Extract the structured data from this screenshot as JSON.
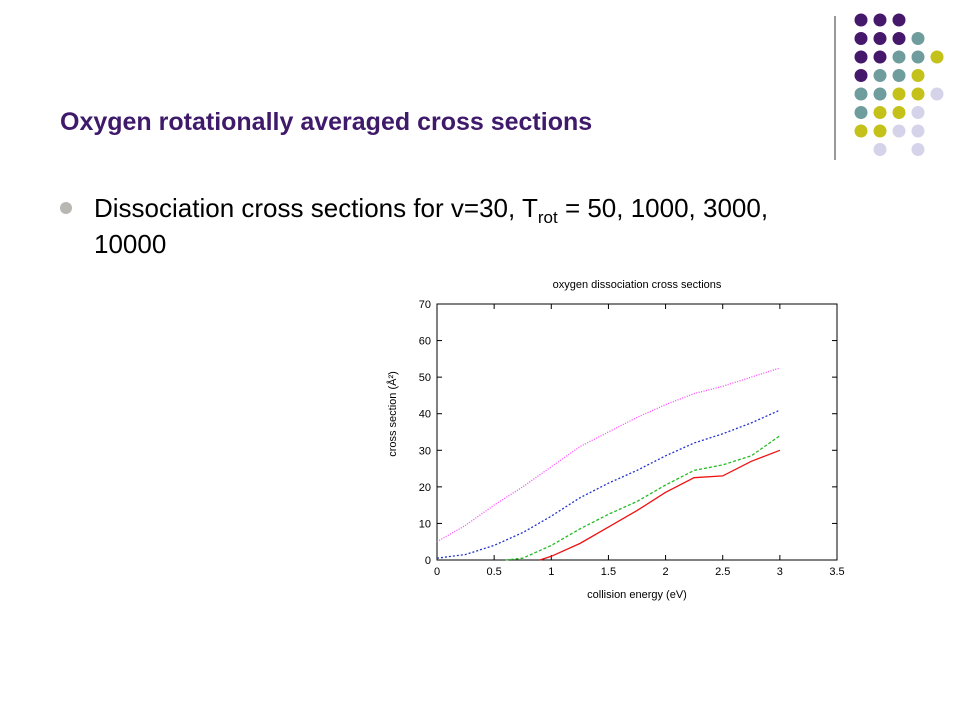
{
  "slide": {
    "title": "Oxygen rotationally averaged cross sections",
    "bullet": {
      "prefix": "Dissociation cross sections for v=30, T",
      "sub": "rot",
      "suffix": " = 50, 1000, 3000, 10000"
    }
  },
  "decoration": {
    "colors": {
      "purple": "#45186c",
      "teal": "#6f9c9c",
      "olive": "#c4c21a",
      "lavender": "#d5d3ea"
    }
  },
  "chart_data": {
    "type": "line",
    "title": "oxygen dissociation cross sections",
    "xlabel": "collision energy (eV)",
    "ylabel": "cross section (Å²)",
    "xlim": [
      0,
      3.5
    ],
    "ylim": [
      0,
      70
    ],
    "xticks": [
      "0",
      "0.5",
      "1",
      "1.5",
      "2",
      "2.5",
      "3",
      "3.5"
    ],
    "yticks": [
      "0",
      "10",
      "20",
      "30",
      "40",
      "50",
      "60",
      "70"
    ],
    "grid": false,
    "series": [
      {
        "color": "#ff44ff",
        "dash": "1,1.5",
        "x": [
          0,
          0.25,
          0.5,
          0.75,
          1.0,
          1.25,
          1.5,
          1.75,
          2.0,
          2.25,
          2.5,
          2.75,
          3.0
        ],
        "y": [
          5.0,
          9.5,
          15.0,
          20.0,
          25.5,
          31.0,
          35.0,
          39.0,
          42.5,
          45.5,
          47.5,
          50.0,
          52.5
        ]
      },
      {
        "color": "#2233cc",
        "dash": "2,2",
        "x": [
          0,
          0.25,
          0.5,
          0.75,
          1.0,
          1.25,
          1.5,
          1.75,
          2.0,
          2.25,
          2.5,
          2.75,
          3.0
        ],
        "y": [
          0.5,
          1.5,
          4.0,
          7.5,
          12.0,
          17.0,
          21.0,
          24.5,
          28.5,
          32.0,
          34.5,
          37.5,
          41.0
        ]
      },
      {
        "color": "#22bb22",
        "dash": "3,2",
        "x": [
          0.6,
          0.75,
          1.0,
          1.25,
          1.5,
          1.75,
          2.0,
          2.25,
          2.5,
          2.75,
          3.0
        ],
        "y": [
          0,
          0.5,
          4.0,
          8.5,
          12.5,
          16.0,
          20.5,
          24.5,
          26.0,
          28.5,
          34.0
        ]
      },
      {
        "color": "#ee1111",
        "dash": "",
        "x": [
          0.9,
          1.0,
          1.25,
          1.5,
          1.75,
          2.0,
          2.25,
          2.5,
          2.75,
          3.0
        ],
        "y": [
          0,
          1.0,
          4.5,
          9.0,
          13.5,
          18.5,
          22.5,
          23.0,
          27.0,
          30.0
        ]
      }
    ]
  }
}
